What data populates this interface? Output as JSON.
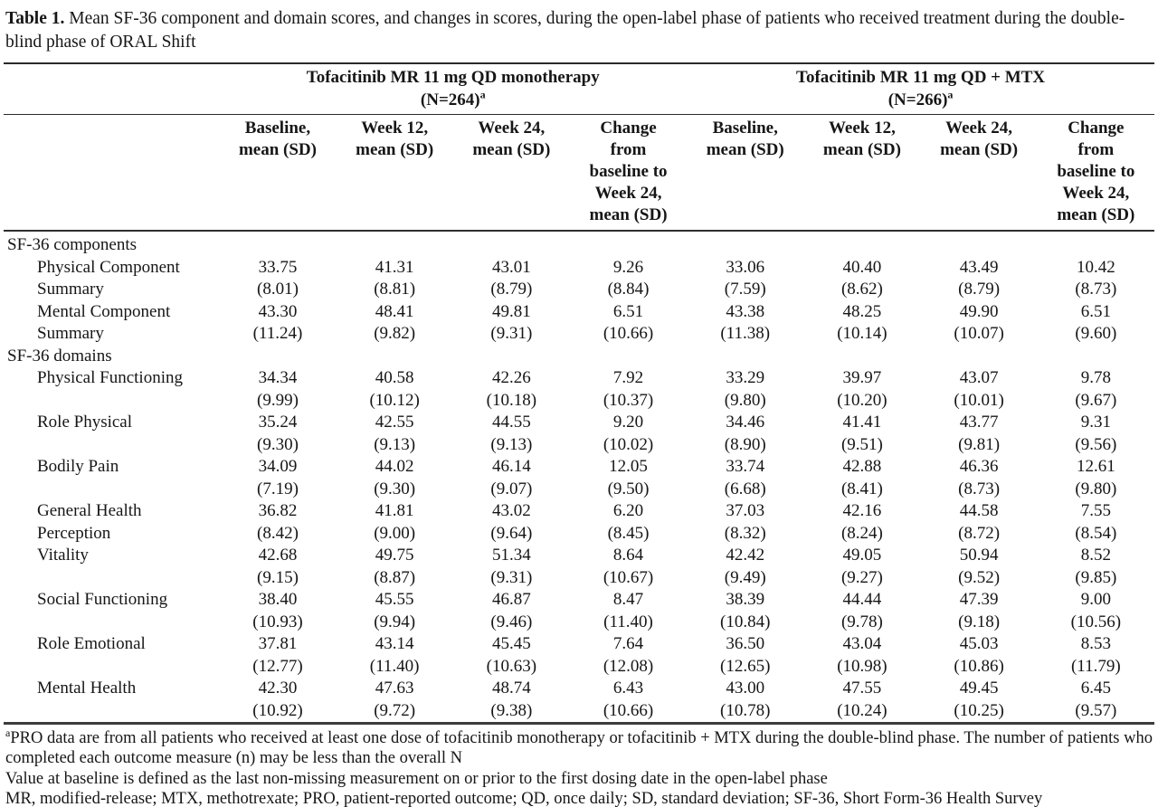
{
  "title": {
    "label": "Table 1.",
    "text": "Mean SF-36 component and domain scores, and changes in scores, during the open-label phase of patients who received treatment during the double-blind phase of ORAL Shift"
  },
  "groups": [
    {
      "line1": "Tofacitinib MR 11 mg QD monotherapy",
      "n_label": "(N=264)",
      "n_sup": "a"
    },
    {
      "line1": "Tofacitinib MR 11 mg QD + MTX",
      "n_label": "(N=266)",
      "n_sup": "a"
    }
  ],
  "col_headers": [
    "Baseline,\nmean (SD)",
    "Week 12,\nmean (SD)",
    "Week 24,\nmean (SD)",
    "Change\nfrom\nbaseline to\nWeek 24,\nmean (SD)"
  ],
  "sections": [
    {
      "header": "SF-36 components",
      "rows": [
        {
          "label1": "Physical Component",
          "label2": "Summary",
          "means": [
            "33.75",
            "41.31",
            "43.01",
            "9.26",
            "33.06",
            "40.40",
            "43.49",
            "10.42"
          ],
          "sds": [
            "(8.01)",
            "(8.81)",
            "(8.79)",
            "(8.84)",
            "(7.59)",
            "(8.62)",
            "(8.79)",
            "(8.73)"
          ]
        },
        {
          "label1": "Mental Component",
          "label2": "Summary",
          "means": [
            "43.30",
            "48.41",
            "49.81",
            "6.51",
            "43.38",
            "48.25",
            "49.90",
            "6.51"
          ],
          "sds": [
            "(11.24)",
            "(9.82)",
            "(9.31)",
            "(10.66)",
            "(11.38)",
            "(10.14)",
            "(10.07)",
            "(9.60)"
          ]
        }
      ]
    },
    {
      "header": "SF-36 domains",
      "rows": [
        {
          "label1": "Physical Functioning",
          "label2": "",
          "means": [
            "34.34",
            "40.58",
            "42.26",
            "7.92",
            "33.29",
            "39.97",
            "43.07",
            "9.78"
          ],
          "sds": [
            "(9.99)",
            "(10.12)",
            "(10.18)",
            "(10.37)",
            "(9.80)",
            "(10.20)",
            "(10.01)",
            "(9.67)"
          ]
        },
        {
          "label1": "Role Physical",
          "label2": "",
          "means": [
            "35.24",
            "42.55",
            "44.55",
            "9.20",
            "34.46",
            "41.41",
            "43.77",
            "9.31"
          ],
          "sds": [
            "(9.30)",
            "(9.13)",
            "(9.13)",
            "(10.02)",
            "(8.90)",
            "(9.51)",
            "(9.81)",
            "(9.56)"
          ]
        },
        {
          "label1": "Bodily Pain",
          "label2": "",
          "means": [
            "34.09",
            "44.02",
            "46.14",
            "12.05",
            "33.74",
            "42.88",
            "46.36",
            "12.61"
          ],
          "sds": [
            "(7.19)",
            "(9.30)",
            "(9.07)",
            "(9.50)",
            "(6.68)",
            "(8.41)",
            "(8.73)",
            "(9.80)"
          ]
        },
        {
          "label1": "General Health",
          "label2": "Perception",
          "means": [
            "36.82",
            "41.81",
            "43.02",
            "6.20",
            "37.03",
            "42.16",
            "44.58",
            "7.55"
          ],
          "sds": [
            "(8.42)",
            "(9.00)",
            "(9.64)",
            "(8.45)",
            "(8.32)",
            "(8.24)",
            "(8.72)",
            "(8.54)"
          ]
        },
        {
          "label1": "Vitality",
          "label2": "",
          "means": [
            "42.68",
            "49.75",
            "51.34",
            "8.64",
            "42.42",
            "49.05",
            "50.94",
            "8.52"
          ],
          "sds": [
            "(9.15)",
            "(8.87)",
            "(9.31)",
            "(10.67)",
            "(9.49)",
            "(9.27)",
            "(9.52)",
            "(9.85)"
          ]
        },
        {
          "label1": "Social Functioning",
          "label2": "",
          "means": [
            "38.40",
            "45.55",
            "46.87",
            "8.47",
            "38.39",
            "44.44",
            "47.39",
            "9.00"
          ],
          "sds": [
            "(10.93)",
            "(9.94)",
            "(9.46)",
            "(11.40)",
            "(10.84)",
            "(9.78)",
            "(9.18)",
            "(10.56)"
          ]
        },
        {
          "label1": "Role Emotional",
          "label2": "",
          "means": [
            "37.81",
            "43.14",
            "45.45",
            "7.64",
            "36.50",
            "43.04",
            "45.03",
            "8.53"
          ],
          "sds": [
            "(12.77)",
            "(11.40)",
            "(10.63)",
            "(12.08)",
            "(12.65)",
            "(10.98)",
            "(10.86)",
            "(11.79)"
          ]
        },
        {
          "label1": "Mental Health",
          "label2": "",
          "means": [
            "42.30",
            "47.63",
            "48.74",
            "6.43",
            "43.00",
            "47.55",
            "49.45",
            "6.45"
          ],
          "sds": [
            "(10.92)",
            "(9.72)",
            "(9.38)",
            "(10.66)",
            "(10.78)",
            "(10.24)",
            "(10.25)",
            "(9.57)"
          ]
        }
      ]
    }
  ],
  "footnotes": [
    {
      "sup": "a",
      "text": "PRO data are from all patients who received at least one dose of tofacitinib monotherapy or tofacitinib + MTX during the double-blind phase. The number of patients who completed each outcome measure (n) may be less than the overall N"
    },
    {
      "sup": "",
      "text": "Value at baseline is defined as the last non-missing measurement on or prior to the first dosing date in the open-label phase"
    },
    {
      "sup": "",
      "text": "MR, modified-release; MTX, methotrexate; PRO, patient-reported outcome; QD, once daily; SD, standard deviation; SF-36, Short Form-36 Health Survey"
    }
  ]
}
